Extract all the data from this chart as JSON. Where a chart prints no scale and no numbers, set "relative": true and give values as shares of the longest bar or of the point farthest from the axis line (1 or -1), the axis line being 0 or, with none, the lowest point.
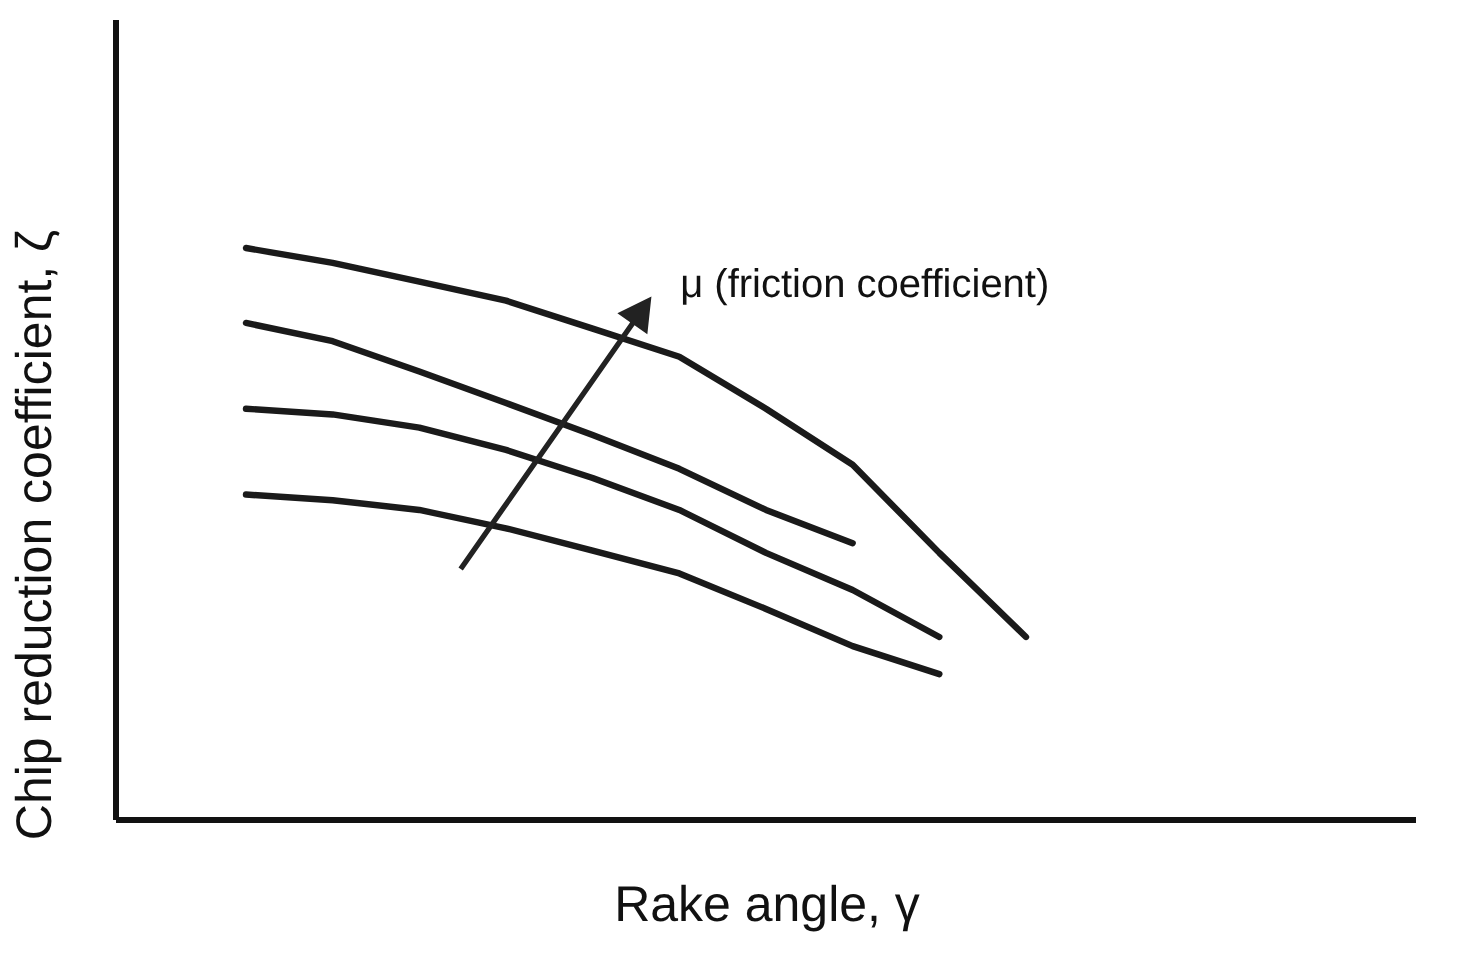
{
  "chart_data": {
    "type": "line",
    "relative": true,
    "xlabel": "Rake angle, γ",
    "ylabel": "Chip reduction coefficient, ζ",
    "tick_labels": false,
    "grid": false,
    "legend": false,
    "marker": "none",
    "line_style": "solid",
    "annotations": [
      "μ (friction coefficient)"
    ],
    "categories": [
      null,
      null,
      null,
      null,
      null,
      null,
      null,
      null,
      null,
      null,
      null,
      null,
      null,
      null,
      null
    ],
    "series": [
      {
        "color": "#1a1a1a",
        "values": [
          null,
          1,
          0.974,
          0.941,
          0.908,
          0.859,
          0.81,
          0.719,
          0.621,
          0.467,
          0.32,
          null,
          null,
          null,
          null
        ]
      },
      {
        "color": "#1a1a1a",
        "values": [
          null,
          0.869,
          0.837,
          0.784,
          0.729,
          0.673,
          0.614,
          0.542,
          0.484,
          null,
          null,
          null,
          null,
          null,
          null
        ]
      },
      {
        "color": "#1a1a1a",
        "values": [
          null,
          0.719,
          0.709,
          0.686,
          0.647,
          0.598,
          0.542,
          0.467,
          0.402,
          0.32,
          null,
          null,
          null,
          null,
          null
        ]
      },
      {
        "color": "#1a1a1a",
        "values": [
          null,
          0.569,
          0.559,
          0.542,
          0.51,
          0.471,
          0.431,
          0.369,
          0.304,
          0.255,
          null,
          null,
          null,
          null,
          null
        ]
      }
    ]
  }
}
